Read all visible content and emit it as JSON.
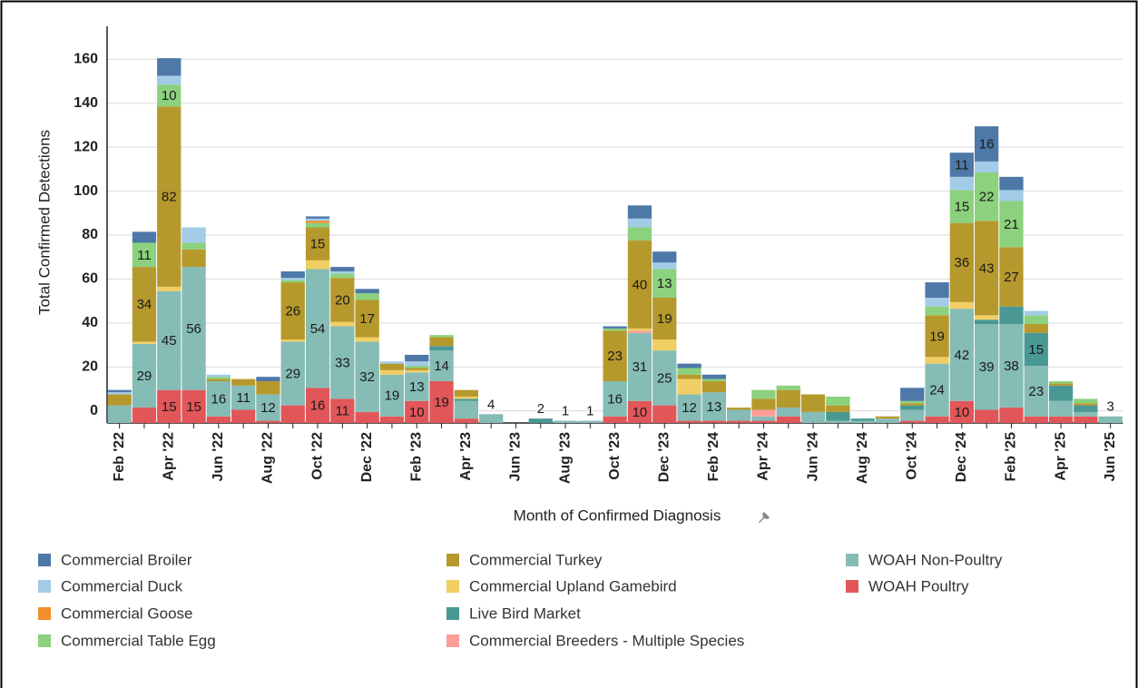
{
  "chart_data": {
    "type": "stacked_bar",
    "y_axis_label": "Total Confirmed Detections",
    "x_axis_label": "Month of Confirmed Diagnosis",
    "categories": [
      "Feb '22",
      null,
      "Apr '22",
      null,
      "Jun '22",
      null,
      "Aug '22",
      null,
      "Oct '22",
      null,
      "Dec '22",
      null,
      "Feb '23",
      null,
      "Apr '23",
      null,
      "Jun '23",
      null,
      "Aug '23",
      null,
      "Oct '23",
      null,
      "Dec '23",
      null,
      "Feb '24",
      null,
      "Apr '24",
      null,
      "Jun '24",
      null,
      "Aug '24",
      null,
      "Oct '24",
      null,
      "Dec '24",
      null,
      "Feb '25",
      null,
      "Apr '25",
      null,
      "Jun '25"
    ],
    "ylim": [
      -5.5,
      175
    ],
    "yticks": [
      0,
      20,
      40,
      60,
      80,
      100,
      120,
      140,
      160
    ],
    "grid": true,
    "legend": "bottom",
    "series": [
      {
        "name": "Commercial Broiler",
        "color": "#4e78a8",
        "values": [
          1,
          5,
          8,
          0,
          0,
          0,
          2,
          3,
          1,
          2,
          2,
          0,
          3,
          0,
          0,
          0,
          0,
          0,
          0,
          0,
          1,
          6,
          5,
          2,
          2,
          0,
          0,
          0,
          0,
          0,
          0,
          0,
          6,
          7,
          11,
          16,
          6,
          0,
          0,
          0,
          0
        ]
      },
      {
        "name": "Commercial Duck",
        "color": "#a3cbe8",
        "values": [
          1,
          0,
          4,
          7,
          1,
          0,
          0,
          1,
          1,
          1,
          0,
          1,
          2,
          0,
          0,
          0,
          0,
          0,
          0,
          0,
          0,
          4,
          3,
          0,
          0,
          0,
          0,
          0,
          0,
          0,
          0,
          0,
          0,
          4,
          6,
          5,
          5,
          2,
          0,
          0,
          0
        ]
      },
      {
        "name": "Commercial Goose",
        "color": "#f28e2b",
        "values": [
          0,
          0,
          0,
          0,
          0,
          0,
          0,
          0,
          1,
          0,
          0,
          0,
          0,
          0,
          0,
          0,
          0,
          0,
          0,
          0,
          0,
          0,
          0,
          0,
          0,
          0,
          0,
          0,
          0,
          0,
          0,
          0,
          0,
          0,
          0,
          0,
          0,
          0,
          0,
          0,
          0
        ]
      },
      {
        "name": "Commercial Table Egg",
        "color": "#8cd17d",
        "values": [
          0,
          11,
          10,
          3,
          1,
          0,
          0,
          1,
          2,
          2,
          3,
          0,
          1,
          1,
          0,
          0,
          0,
          0,
          0,
          0,
          1,
          6,
          13,
          3,
          1,
          0,
          4,
          2,
          0,
          4,
          0,
          0,
          1,
          4,
          15,
          22,
          21,
          4,
          1,
          2,
          0
        ]
      },
      {
        "name": "Commercial Turkey",
        "color": "#b6992d",
        "values": [
          5,
          34,
          82,
          8,
          1,
          3,
          6,
          26,
          15,
          20,
          17,
          3,
          1,
          4,
          3,
          0,
          0,
          0,
          0,
          0,
          23,
          40,
          19,
          2,
          5,
          1,
          5,
          8,
          8,
          3,
          0,
          1,
          1,
          19,
          36,
          43,
          27,
          4,
          1,
          1,
          0
        ]
      },
      {
        "name": "Commercial Upland Gamebird",
        "color": "#f1ce63",
        "values": [
          0,
          1,
          2,
          0,
          0,
          0,
          0,
          1,
          4,
          2,
          2,
          2,
          1,
          0,
          1,
          0,
          0,
          0,
          0,
          0,
          0,
          1,
          5,
          7,
          0,
          0,
          0,
          0,
          0,
          0,
          0,
          0,
          0,
          3,
          3,
          2,
          0,
          0,
          0,
          0,
          0
        ]
      },
      {
        "name": "Live Bird Market",
        "color": "#499894",
        "values": [
          0,
          0,
          0,
          0,
          0,
          0,
          0,
          0,
          0,
          0,
          0,
          0,
          0,
          2,
          1,
          0,
          0,
          2,
          0,
          0,
          0,
          0,
          0,
          0,
          0,
          0,
          0,
          0,
          0,
          4,
          1,
          0,
          2,
          0,
          0,
          2,
          8,
          15,
          7,
          3,
          0
        ]
      },
      {
        "name": "Commercial Breeders - Multiple Species",
        "color": "#ff9d9a",
        "values": [
          0,
          0,
          0,
          0,
          0,
          0,
          0,
          0,
          0,
          0,
          0,
          0,
          0,
          0,
          0,
          0,
          0,
          0,
          0,
          0,
          0,
          1,
          0,
          0,
          0,
          0,
          3,
          0,
          0,
          0,
          0,
          0,
          0,
          0,
          0,
          0,
          0,
          0,
          0,
          0,
          0
        ]
      },
      {
        "name": "WOAH Non-Poultry",
        "color": "#86bcb6",
        "values": [
          8,
          29,
          45,
          56,
          16,
          11,
          12,
          29,
          54,
          33,
          32,
          19,
          13,
          14,
          8,
          4,
          0,
          0,
          1,
          1,
          16,
          31,
          25,
          12,
          13,
          5,
          2,
          4,
          5,
          1,
          1,
          2,
          5,
          24,
          42,
          39,
          38,
          23,
          7,
          2,
          3
        ]
      },
      {
        "name": "WOAH Poultry",
        "color": "#e15759",
        "values": [
          0,
          7,
          15,
          15,
          3,
          6,
          1,
          8,
          16,
          11,
          5,
          3,
          10,
          19,
          2,
          0,
          0,
          0,
          0,
          0,
          3,
          10,
          8,
          1,
          1,
          1,
          1,
          3,
          0,
          0,
          0,
          0,
          1,
          3,
          10,
          6,
          7,
          3,
          3,
          3,
          0
        ]
      }
    ]
  }
}
